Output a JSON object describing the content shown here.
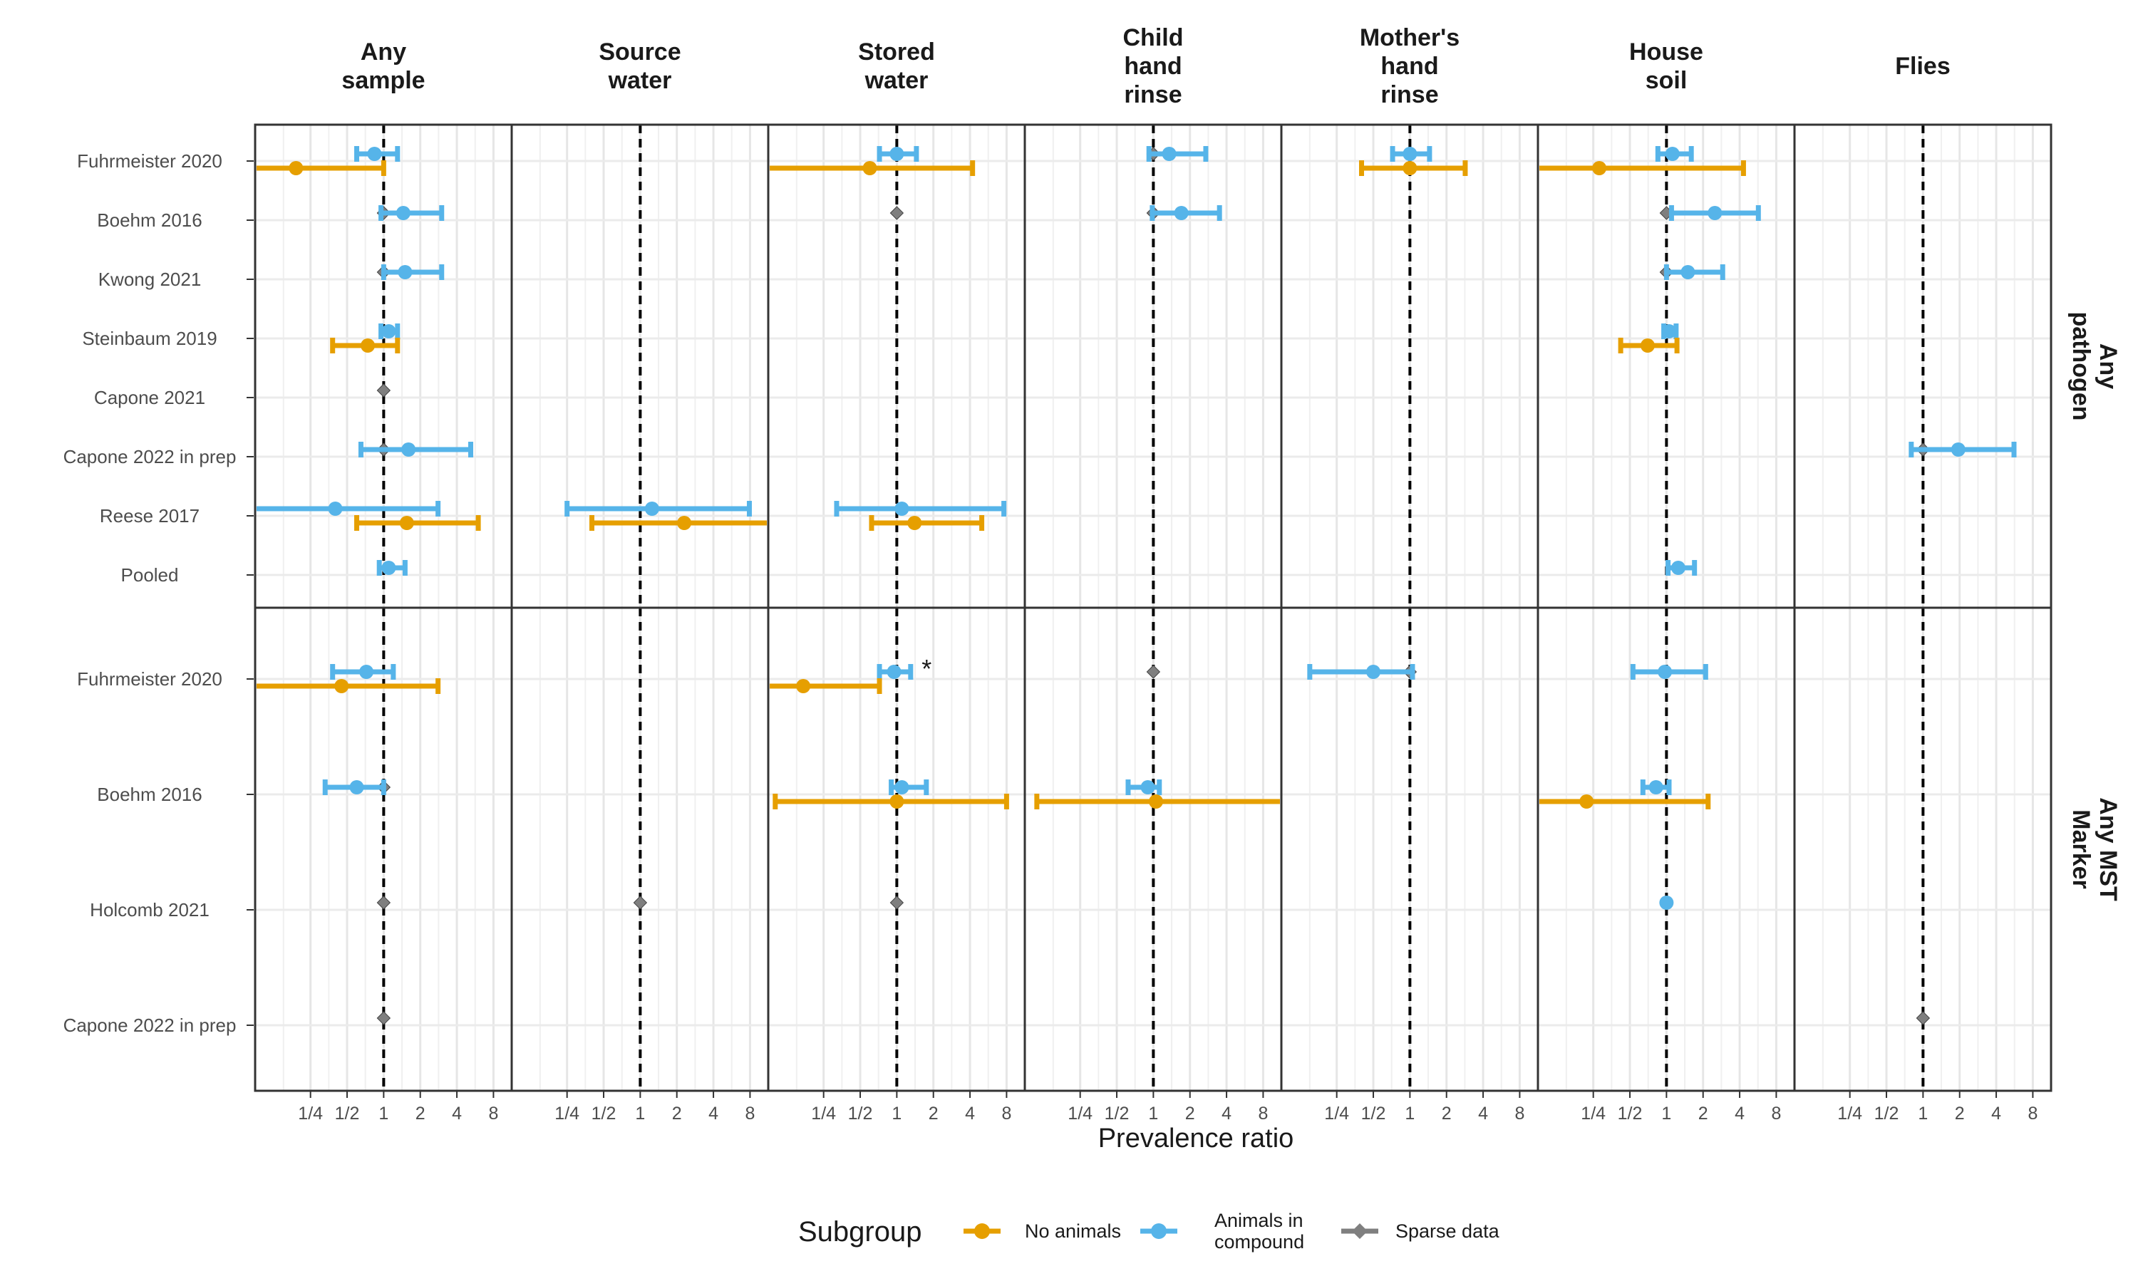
{
  "chart_data": {
    "type": "forest",
    "xlabel": "Prevalence ratio",
    "x_scale": "log2",
    "xlim": [
      0.09,
      11
    ],
    "x_ticks": [
      0.25,
      0.5,
      1,
      2,
      4,
      8
    ],
    "x_tick_labels": [
      "1/4",
      "1/2",
      "1",
      "2",
      "4",
      "8"
    ],
    "reference_line": 1,
    "columns": [
      {
        "id": "any",
        "title": [
          "Any",
          "sample"
        ]
      },
      {
        "id": "source",
        "title": [
          "Source",
          "water"
        ]
      },
      {
        "id": "stored",
        "title": [
          "Stored",
          "water"
        ]
      },
      {
        "id": "child",
        "title": [
          "Child",
          "hand",
          "rinse"
        ]
      },
      {
        "id": "mother",
        "title": [
          "Mother's",
          "hand",
          "rinse"
        ]
      },
      {
        "id": "soil",
        "title": [
          "House",
          "soil"
        ]
      },
      {
        "id": "flies",
        "title": [
          "Flies"
        ]
      }
    ],
    "legend": {
      "title": "Subgroup",
      "items": [
        {
          "key": "no_animals",
          "label": [
            "No animals"
          ],
          "color": "#E69F00",
          "marker": "circle"
        },
        {
          "key": "animals",
          "label": [
            "Animals in",
            "compound"
          ],
          "color": "#56B4E9",
          "marker": "circle"
        },
        {
          "key": "sparse",
          "label": [
            "Sparse data"
          ],
          "color": "#7f7f7f",
          "marker": "diamond"
        }
      ]
    },
    "panels": [
      {
        "strip": [
          "Any",
          "pathogen"
        ],
        "rows": [
          "Fuhrmeister 2020",
          "Boehm 2016",
          "Kwong 2021",
          "Steinbaum 2019",
          "Capone 2021",
          "Capone 2022 in prep",
          "Reese 2017",
          "Pooled"
        ],
        "estimates": [
          {
            "row": 0,
            "col": "any",
            "group": "animals",
            "est": 0.84,
            "lo": 0.6,
            "hi": 1.3
          },
          {
            "row": 0,
            "col": "any",
            "group": "no_animals",
            "est": 0.19,
            "lo": 0.09,
            "hi": 1.0
          },
          {
            "row": 0,
            "col": "stored",
            "group": "animals",
            "est": 1.0,
            "lo": 0.72,
            "hi": 1.45
          },
          {
            "row": 0,
            "col": "stored",
            "group": "no_animals",
            "est": 0.6,
            "lo": 0.09,
            "hi": 4.2
          },
          {
            "row": 0,
            "col": "child",
            "group": "sparse",
            "est": 1.0
          },
          {
            "row": 0,
            "col": "child",
            "group": "animals",
            "est": 1.35,
            "lo": 0.92,
            "hi": 2.7
          },
          {
            "row": 0,
            "col": "mother",
            "group": "animals",
            "est": 1.0,
            "lo": 0.72,
            "hi": 1.45
          },
          {
            "row": 0,
            "col": "mother",
            "group": "no_animals",
            "est": 1.0,
            "lo": 0.4,
            "hi": 2.85
          },
          {
            "row": 0,
            "col": "soil",
            "group": "animals",
            "est": 1.12,
            "lo": 0.85,
            "hi": 1.6
          },
          {
            "row": 0,
            "col": "soil",
            "group": "no_animals",
            "est": 0.28,
            "lo": 0.09,
            "hi": 4.3
          },
          {
            "row": 1,
            "col": "any",
            "group": "sparse",
            "est": 1.0
          },
          {
            "row": 1,
            "col": "any",
            "group": "animals",
            "est": 1.45,
            "lo": 0.95,
            "hi": 3.0
          },
          {
            "row": 1,
            "col": "stored",
            "group": "sparse",
            "est": 1.0
          },
          {
            "row": 1,
            "col": "child",
            "group": "sparse",
            "est": 1.0
          },
          {
            "row": 1,
            "col": "child",
            "group": "animals",
            "est": 1.7,
            "lo": 0.98,
            "hi": 3.5
          },
          {
            "row": 1,
            "col": "soil",
            "group": "sparse",
            "est": 1.0
          },
          {
            "row": 1,
            "col": "soil",
            "group": "animals",
            "est": 2.5,
            "lo": 1.1,
            "hi": 5.7
          },
          {
            "row": 2,
            "col": "any",
            "group": "sparse",
            "est": 1.0
          },
          {
            "row": 2,
            "col": "any",
            "group": "animals",
            "est": 1.5,
            "lo": 1.0,
            "hi": 3.0
          },
          {
            "row": 2,
            "col": "soil",
            "group": "sparse",
            "est": 1.0
          },
          {
            "row": 2,
            "col": "soil",
            "group": "animals",
            "est": 1.5,
            "lo": 1.0,
            "hi": 2.9
          },
          {
            "row": 3,
            "col": "any",
            "group": "animals",
            "est": 1.1,
            "lo": 0.95,
            "hi": 1.3
          },
          {
            "row": 3,
            "col": "any",
            "group": "no_animals",
            "est": 0.74,
            "lo": 0.38,
            "hi": 1.3
          },
          {
            "row": 3,
            "col": "soil",
            "group": "animals",
            "est": 1.05,
            "lo": 0.95,
            "hi": 1.2
          },
          {
            "row": 3,
            "col": "soil",
            "group": "no_animals",
            "est": 0.7,
            "lo": 0.42,
            "hi": 1.22
          },
          {
            "row": 4,
            "col": "any",
            "group": "sparse",
            "est": 1.0
          },
          {
            "row": 5,
            "col": "any",
            "group": "sparse",
            "est": 1.0
          },
          {
            "row": 5,
            "col": "any",
            "group": "animals",
            "est": 1.6,
            "lo": 0.65,
            "hi": 5.2
          },
          {
            "row": 5,
            "col": "flies",
            "group": "sparse",
            "est": 1.0
          },
          {
            "row": 5,
            "col": "flies",
            "group": "animals",
            "est": 1.95,
            "lo": 0.8,
            "hi": 5.6
          },
          {
            "row": 6,
            "col": "any",
            "group": "animals",
            "est": 0.4,
            "lo": 0.09,
            "hi": 2.8
          },
          {
            "row": 6,
            "col": "any",
            "group": "no_animals",
            "est": 1.55,
            "lo": 0.6,
            "hi": 6.0
          },
          {
            "row": 6,
            "col": "source",
            "group": "animals",
            "est": 1.25,
            "lo": 0.25,
            "hi": 7.9
          },
          {
            "row": 6,
            "col": "source",
            "group": "no_animals",
            "est": 2.3,
            "lo": 0.4,
            "hi": 11
          },
          {
            "row": 6,
            "col": "stored",
            "group": "animals",
            "est": 1.1,
            "lo": 0.32,
            "hi": 7.6
          },
          {
            "row": 6,
            "col": "stored",
            "group": "no_animals",
            "est": 1.4,
            "lo": 0.62,
            "hi": 5.0
          },
          {
            "row": 7,
            "col": "any",
            "group": "animals",
            "est": 1.1,
            "lo": 0.92,
            "hi": 1.5
          },
          {
            "row": 7,
            "col": "soil",
            "group": "animals",
            "est": 1.25,
            "lo": 1.03,
            "hi": 1.7
          }
        ]
      },
      {
        "strip": [
          "Any MST",
          "Marker"
        ],
        "rows": [
          "Fuhrmeister 2020",
          "Boehm 2016",
          "Holcomb 2021",
          "Capone 2022 in prep"
        ],
        "estimates": [
          {
            "row": 0,
            "col": "any",
            "group": "animals",
            "est": 0.72,
            "lo": 0.38,
            "hi": 1.2
          },
          {
            "row": 0,
            "col": "any",
            "group": "no_animals",
            "est": 0.45,
            "lo": 0.09,
            "hi": 2.8
          },
          {
            "row": 0,
            "col": "stored",
            "group": "animals",
            "est": 0.95,
            "lo": 0.72,
            "hi": 1.3
          },
          {
            "row": 0,
            "col": "stored",
            "group": "no_animals",
            "est": 0.17,
            "lo": 0.09,
            "hi": 0.72
          },
          {
            "row": 0,
            "col": "child",
            "group": "sparse",
            "est": 1.0
          },
          {
            "row": 0,
            "col": "mother",
            "group": "sparse",
            "est": 1.0
          },
          {
            "row": 0,
            "col": "mother",
            "group": "animals",
            "est": 0.5,
            "lo": 0.15,
            "hi": 1.05
          },
          {
            "row": 0,
            "col": "soil",
            "group": "sparse",
            "est": 1.0
          },
          {
            "row": 0,
            "col": "soil",
            "group": "animals",
            "est": 0.97,
            "lo": 0.53,
            "hi": 2.1
          },
          {
            "row": 1,
            "col": "any",
            "group": "sparse",
            "est": 1.0
          },
          {
            "row": 1,
            "col": "any",
            "group": "animals",
            "est": 0.6,
            "lo": 0.33,
            "hi": 1.0
          },
          {
            "row": 1,
            "col": "stored",
            "group": "animals",
            "est": 1.1,
            "lo": 0.9,
            "hi": 1.75
          },
          {
            "row": 1,
            "col": "stored",
            "group": "no_animals",
            "est": 1.0,
            "lo": 0.1,
            "hi": 8.0
          },
          {
            "row": 1,
            "col": "child",
            "group": "animals",
            "est": 0.9,
            "lo": 0.62,
            "hi": 1.12
          },
          {
            "row": 1,
            "col": "child",
            "group": "no_animals",
            "est": 1.05,
            "lo": 0.11,
            "hi": 11
          },
          {
            "row": 1,
            "col": "soil",
            "group": "animals",
            "est": 0.82,
            "lo": 0.64,
            "hi": 1.05
          },
          {
            "row": 1,
            "col": "soil",
            "group": "no_animals",
            "est": 0.22,
            "lo": 0.09,
            "hi": 2.2
          },
          {
            "row": 2,
            "col": "any",
            "group": "sparse",
            "est": 1.0
          },
          {
            "row": 2,
            "col": "source",
            "group": "sparse",
            "est": 1.0
          },
          {
            "row": 2,
            "col": "stored",
            "group": "sparse",
            "est": 1.0
          },
          {
            "row": 2,
            "col": "soil",
            "group": "sparse",
            "est": 1.0
          },
          {
            "row": 2,
            "col": "soil",
            "group": "animals",
            "est": 1.0
          },
          {
            "row": 3,
            "col": "any",
            "group": "sparse",
            "est": 1.0
          },
          {
            "row": 3,
            "col": "flies",
            "group": "sparse",
            "est": 1.0
          }
        ],
        "annotations": [
          {
            "row": 0,
            "col": "stored",
            "text": "*"
          }
        ]
      }
    ]
  }
}
